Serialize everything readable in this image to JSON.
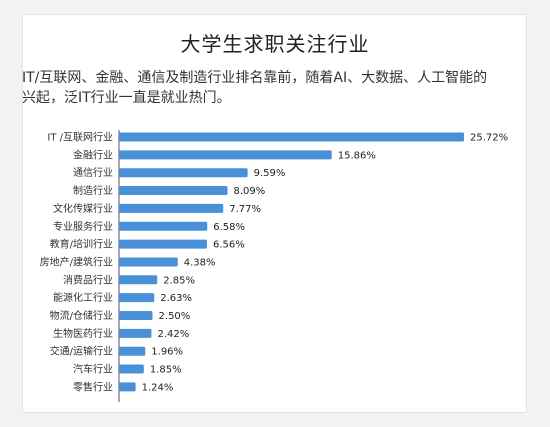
{
  "chart_data": {
    "type": "bar",
    "orientation": "horizontal",
    "title": "大学生求职关注行业",
    "subtitle": "IT/互联网、金融、通信及制造行业排名靠前，随着AI、大数据、人工智能的兴起，泛IT行业一直是就业热门。",
    "categories": [
      "IT /互联网行业",
      "金融行业",
      "通信行业",
      "制造行业",
      "文化传媒行业",
      "专业服务行业",
      "教育/培训行业",
      "房地产/建筑行业",
      "消费品行业",
      "能源化工行业",
      "物流/仓储行业",
      "生物医药行业",
      "交通/运输行业",
      "汽车行业",
      "零售行业"
    ],
    "values": [
      25.72,
      15.86,
      9.59,
      8.09,
      7.77,
      6.58,
      6.56,
      4.38,
      2.85,
      2.63,
      2.5,
      2.42,
      1.96,
      1.85,
      1.24
    ],
    "value_labels": [
      "25.72%",
      "15.86%",
      "9.59%",
      "8.09%",
      "7.77%",
      "6.58%",
      "6.56%",
      "4.38%",
      "2.85%",
      "2.63%",
      "2.50%",
      "2.42%",
      "1.96%",
      "1.85%",
      "1.24%"
    ],
    "xlim": [
      0,
      26.5
    ],
    "bar_color": "#4a90d9",
    "grid": false,
    "legend": "none"
  }
}
